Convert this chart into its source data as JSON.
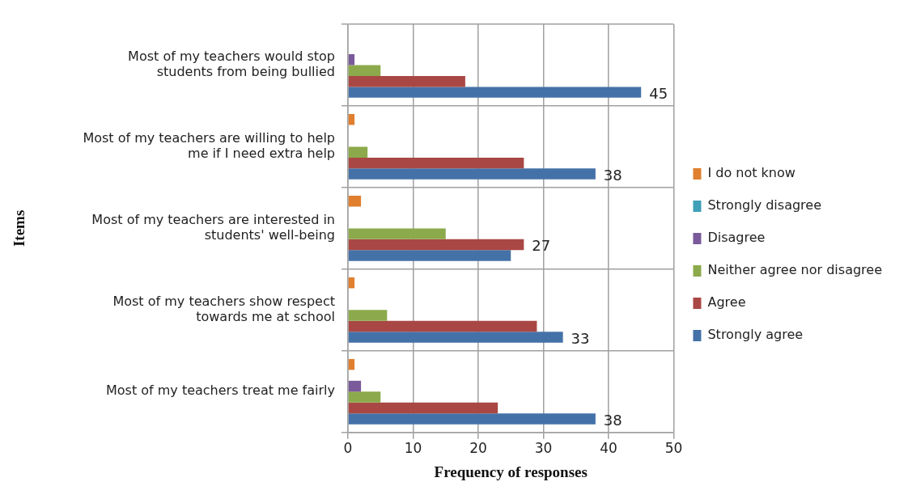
{
  "chart_data": {
    "type": "bar",
    "orientation": "horizontal",
    "xlabel": "Frequency of responses",
    "ylabel": "Items",
    "categories": [
      "Most of my teachers would stop students from being bullied",
      "Most of my teachers are willing to help me if I need extra help",
      "Most of my teachers are interested in students' well-being",
      "Most of my teachers show respect towards me at school",
      "Most of my teachers treat me fairly"
    ],
    "series": [
      {
        "name": "I do not know",
        "color": "#e07f2e",
        "values": [
          0,
          1,
          2,
          1,
          1
        ]
      },
      {
        "name": "Strongly disagree",
        "color": "#3fa0b8",
        "values": [
          0,
          0,
          0,
          0,
          0
        ]
      },
      {
        "name": "Disagree",
        "color": "#7a5a9a",
        "values": [
          1,
          0,
          0,
          0,
          2
        ]
      },
      {
        "name": "Neither agree nor disagree",
        "color": "#8caa4b",
        "values": [
          5,
          3,
          15,
          6,
          5
        ]
      },
      {
        "name": "Agree",
        "color": "#a94744",
        "values": [
          18,
          27,
          27,
          29,
          23
        ],
        "value_labels": [
          null,
          null,
          "27",
          null,
          null
        ]
      },
      {
        "name": "Strongly agree",
        "color": "#4472a8",
        "values": [
          45,
          38,
          25,
          33,
          38
        ],
        "value_labels": [
          "45",
          "38",
          null,
          "33",
          "38"
        ]
      }
    ],
    "xlim": [
      0,
      50
    ],
    "xticks": [
      0,
      10,
      20,
      30,
      40,
      50
    ],
    "grid": true,
    "legend": "right"
  }
}
